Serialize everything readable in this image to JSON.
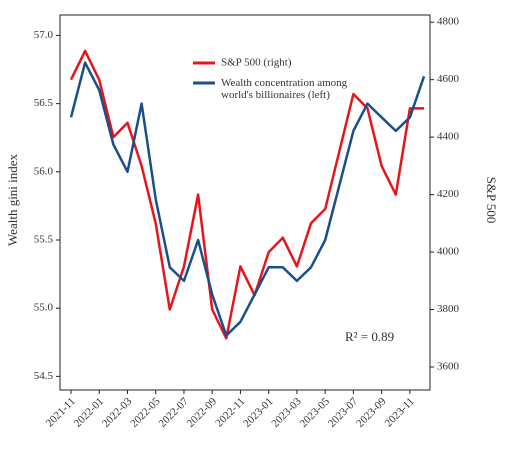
{
  "chart_data": {
    "type": "line",
    "x": [
      "2021-11",
      null,
      "2022-01",
      null,
      "2022-03",
      null,
      "2022-05",
      null,
      "2022-07",
      null,
      "2022-09",
      null,
      "2022-11",
      null,
      "2023-01",
      null,
      "2023-03",
      null,
      "2023-05",
      null,
      "2023-07",
      null,
      "2023-09",
      null,
      "2023-11",
      null
    ],
    "series": [
      {
        "name": "S&P 500 (right)",
        "color": "#e8141c",
        "axis": "y2",
        "values": [
          4600,
          4700,
          4600,
          4400,
          4450,
          4300,
          4100,
          3800,
          3950,
          4200,
          3800,
          3700,
          3950,
          3850,
          4000,
          4050,
          3950,
          4100,
          4150,
          4350,
          4550,
          4500,
          4300,
          4200,
          4500,
          4500
        ]
      },
      {
        "name": "Wealth concentration among world's billionaires (left)",
        "color": "#1a4f8c",
        "values": [
          56.4,
          56.8,
          56.6,
          56.2,
          56.0,
          56.5,
          55.8,
          55.3,
          55.2,
          55.5,
          55.1,
          54.8,
          54.9,
          55.1,
          55.3,
          55.3,
          55.2,
          55.3,
          55.5,
          55.9,
          56.3,
          56.5,
          56.4,
          56.3,
          56.4,
          56.7
        ]
      }
    ],
    "ylabel": "Wealth gini index",
    "y2label": "S&P 500",
    "ylim": [
      54.4,
      57.15
    ],
    "yticks": [
      54.5,
      {
        "value": 55.0,
        "label": "55.0"
      },
      55.5,
      {
        "value": 56.0,
        "label": "56.0"
      },
      56.5,
      {
        "value": 57.0,
        "label": "57.0"
      }
    ],
    "y2lim": [
      3520,
      4825
    ],
    "y2ticks": [
      3600,
      3800,
      4000,
      4200,
      4400,
      4600,
      4800
    ],
    "annotation": "R² = 0.89",
    "grid": false
  }
}
